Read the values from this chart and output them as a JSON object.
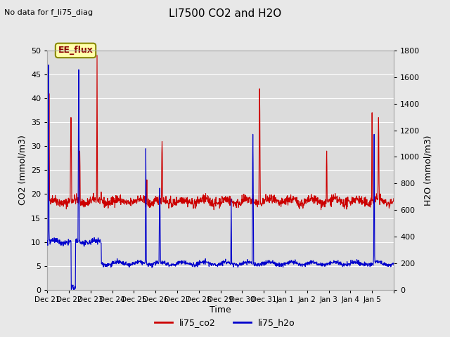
{
  "title": "LI7500 CO2 and H2O",
  "top_left_text": "No data for f_li75_diag",
  "ylabel_left": "CO2 (mmol/m3)",
  "ylabel_right": "H2O (mmol/m3)",
  "xlabel": "Time",
  "ylim_left": [
    0,
    50
  ],
  "ylim_right": [
    0,
    1800
  ],
  "background_color": "#e8e8e8",
  "plot_bg_color": "#dcdcdc",
  "co2_color": "#cc0000",
  "h2o_color": "#0000cc",
  "legend_label_co2": "li75_co2",
  "legend_label_h2o": "li75_h2o",
  "box_label": "EE_flux",
  "box_facecolor": "#ffffaa",
  "box_edgecolor": "#888800",
  "n_points": 1344,
  "xtick_positions": [
    0,
    1,
    2,
    3,
    4,
    5,
    6,
    7,
    8,
    9,
    10,
    11,
    12,
    13,
    14,
    15,
    16
  ],
  "xtick_labels": [
    "Dec 21",
    "Dec 22",
    "Dec 23",
    "Dec 24",
    "Dec 25",
    "Dec 26",
    "Dec 27",
    "Dec 28",
    "Dec 29",
    "Dec 30",
    "Dec 31",
    "Jan 1",
    "Jan 2",
    "Jan 3",
    "Jan 4",
    "Jan 5",
    ""
  ],
  "yticks_left": [
    0,
    5,
    10,
    15,
    20,
    25,
    30,
    35,
    40,
    45,
    50
  ],
  "yticks_right": [
    0,
    200,
    400,
    600,
    800,
    1000,
    1200,
    1400,
    1600,
    1800
  ]
}
